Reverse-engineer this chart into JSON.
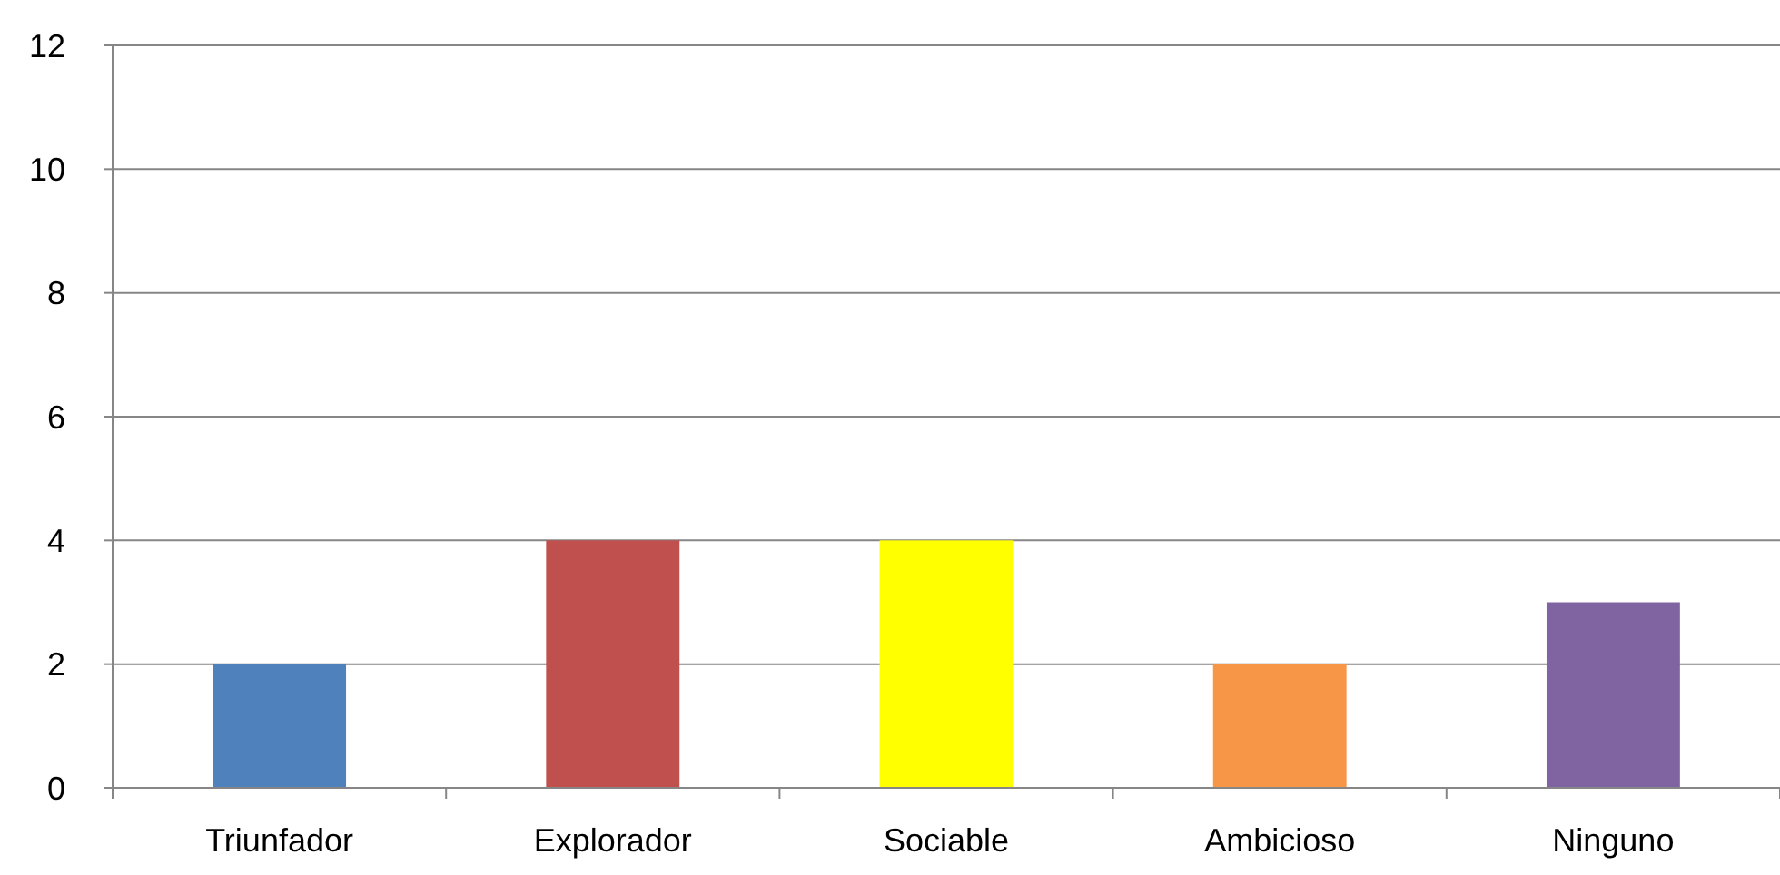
{
  "chart_data": {
    "type": "bar",
    "categories": [
      "Triunfador",
      "Explorador",
      "Sociable",
      "Ambicioso",
      "Ninguno"
    ],
    "values": [
      2,
      4,
      4,
      2,
      3
    ],
    "colors": [
      "#4f81bd",
      "#c0504d",
      "#ffff00",
      "#f79646",
      "#8064a2"
    ],
    "ylim": [
      0,
      12
    ],
    "yticks": [
      0,
      2,
      4,
      6,
      8,
      10,
      12
    ],
    "grid": "y"
  }
}
